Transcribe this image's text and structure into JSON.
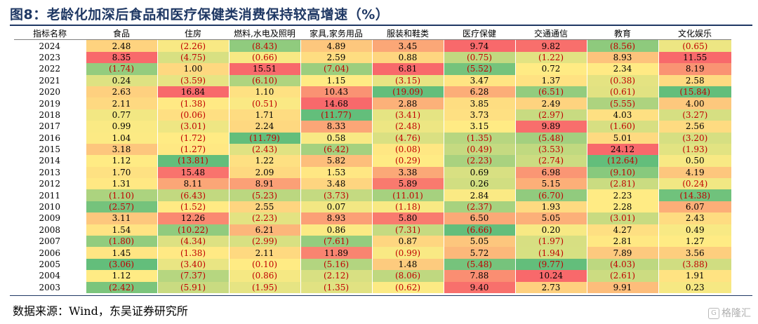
{
  "title": "图8：老龄化加深后食品和医疗保健类消费保持较高增速（%）",
  "source": "数据来源：Wind，东吴证券研究所",
  "watermark": "格隆汇",
  "colors": {
    "high": "#f8696b",
    "mid": "#ffeb84",
    "low": "#63be7b",
    "negative_text": "#c00000",
    "title": "#1f3864"
  },
  "chart_data": {
    "type": "heatmap",
    "title": "老龄化加深后食品和医疗保健类消费保持较高增速（%）",
    "row_header": "指标名称",
    "columns": [
      "食品",
      "住房",
      "燃料,水电及照明",
      "家具,家务用品",
      "服装和鞋类",
      "医疗保健",
      "交通通信",
      "教育",
      "文化娱乐"
    ],
    "rows": [
      "2024",
      "2023",
      "2022",
      "2021",
      "2020",
      "2019",
      "2018",
      "2017",
      "2016",
      "2015",
      "2014",
      "2013",
      "2012",
      "2011",
      "2010",
      "2009",
      "2008",
      "2007",
      "2006",
      "2005",
      "2004",
      "2003"
    ],
    "values": [
      [
        2.48,
        -2.26,
        -8.43,
        4.89,
        3.45,
        9.74,
        9.82,
        -8.56,
        -0.65
      ],
      [
        8.35,
        -4.75,
        -0.66,
        2.59,
        0.88,
        -0.75,
        -1.22,
        8.93,
        11.55
      ],
      [
        -1.74,
        1.0,
        15.51,
        -7.04,
        6.81,
        -5.52,
        0.72,
        2.34,
        8.19
      ],
      [
        0.24,
        -3.59,
        -6.1,
        1.15,
        -3.15,
        3.47,
        1.37,
        -0.38,
        2.58
      ],
      [
        2.63,
        16.84,
        1.1,
        10.43,
        -19.09,
        6.28,
        -6.51,
        -0.61,
        -15.84
      ],
      [
        2.11,
        -1.38,
        -0.51,
        14.68,
        2.88,
        3.85,
        2.49,
        -5.55,
        4.0
      ],
      [
        0.77,
        -0.06,
        1.71,
        -11.77,
        -3.41,
        3.73,
        -2.97,
        4.03,
        -3.27
      ],
      [
        0.99,
        -3.01,
        2.24,
        8.33,
        -2.48,
        3.15,
        9.89,
        -1.6,
        2.56
      ],
      [
        1.04,
        -1.72,
        -11.79,
        0.58,
        -4.76,
        -1.35,
        -5.48,
        5.01,
        -3.2
      ],
      [
        3.18,
        -1.27,
        -2.43,
        -6.42,
        -0.08,
        -0.49,
        -3.53,
        24.12,
        -1.93
      ],
      [
        1.12,
        -13.81,
        1.22,
        5.82,
        -0.29,
        -2.23,
        -2.74,
        -12.64,
        0.5
      ],
      [
        1.7,
        15.48,
        2.09,
        1.53,
        3.38,
        0.69,
        6.98,
        -9.1,
        4.19
      ],
      [
        1.31,
        8.11,
        8.91,
        3.48,
        5.89,
        0.26,
        5.15,
        -2.81,
        -0.24
      ],
      [
        -1.1,
        -6.43,
        -5.23,
        -3.73,
        -11.01,
        2.84,
        -6.7,
        2.23,
        -14.38
      ],
      [
        -2.57,
        -1.52,
        2.55,
        0.07,
        -1.18,
        -2.37,
        1.93,
        2.28,
        6.07
      ],
      [
        3.11,
        12.26,
        -2.23,
        8.93,
        5.8,
        6.5,
        5.05,
        -3.01,
        2.43
      ],
      [
        1.54,
        -10.22,
        6.21,
        0.86,
        -7.31,
        -6.66,
        0.2,
        4.27,
        0.49
      ],
      [
        -1.8,
        -4.34,
        -2.99,
        -7.61,
        0.87,
        5.05,
        -1.97,
        2.81,
        1.27
      ],
      [
        1.45,
        -1.38,
        2.11,
        11.89,
        -0.99,
        5.72,
        -1.94,
        7.89,
        3.56
      ],
      [
        -3.06,
        -3.4,
        -0.1,
        -5.16,
        1.48,
        -5.48,
        -9.77,
        -4.03,
        -3.88
      ],
      [
        1.12,
        -7.37,
        -0.86,
        -2.12,
        -8.06,
        7.88,
        10.24,
        -2.61,
        1.91
      ],
      [
        -2.42,
        -5.91,
        -1.95,
        -1.35,
        -0.62,
        9.4,
        2.73,
        9.91,
        0.23
      ]
    ],
    "number_format": "negatives shown in red parentheses, two decimals"
  }
}
